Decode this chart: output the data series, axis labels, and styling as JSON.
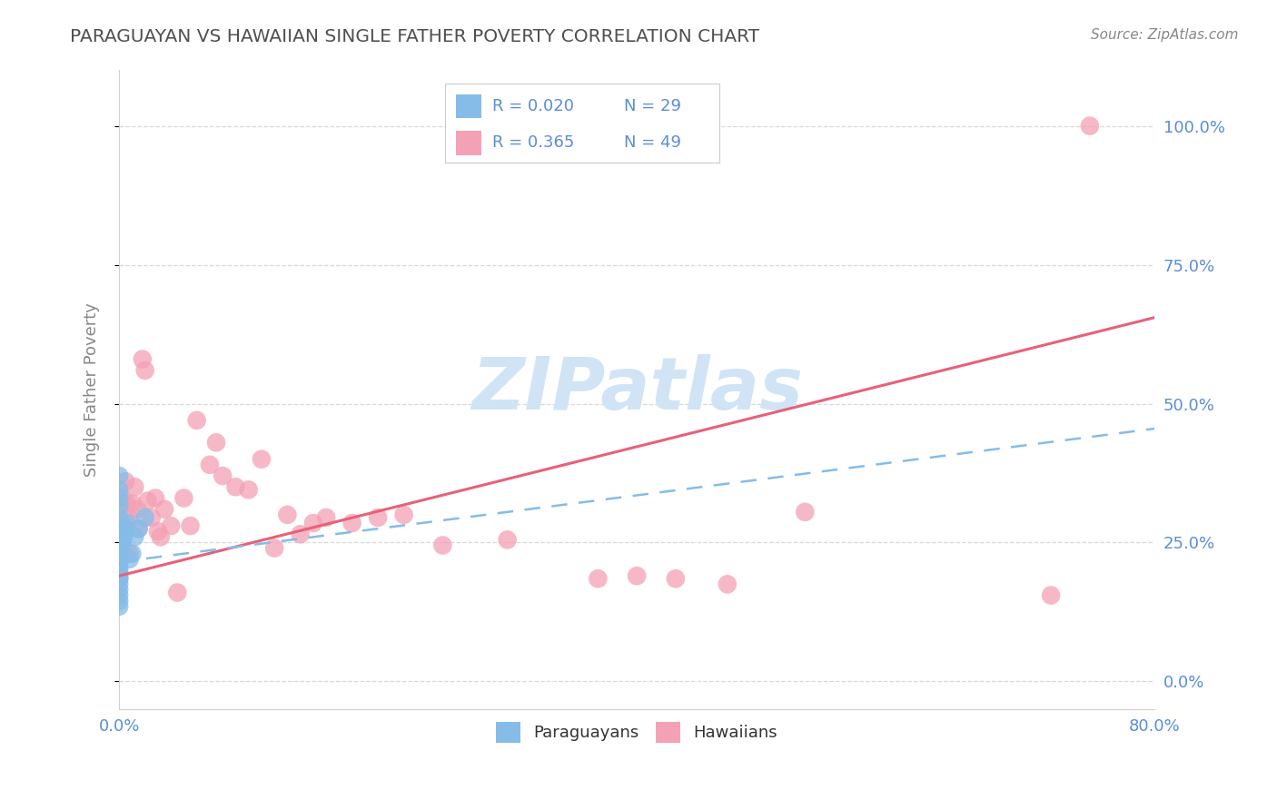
{
  "title": "PARAGUAYAN VS HAWAIIAN SINGLE FATHER POVERTY CORRELATION CHART",
  "source": "Source: ZipAtlas.com",
  "ylabel": "Single Father Poverty",
  "xlim": [
    0.0,
    0.8
  ],
  "ylim": [
    -0.05,
    1.1
  ],
  "yticks": [
    0.0,
    0.25,
    0.5,
    0.75,
    1.0
  ],
  "ytick_labels": [
    "0.0%",
    "25.0%",
    "50.0%",
    "75.0%",
    "100.0%"
  ],
  "xtick_labels": [
    "0.0%",
    "80.0%"
  ],
  "watermark": "ZIPatlas",
  "legend_blue_r": "R = 0.020",
  "legend_blue_n": "N = 29",
  "legend_pink_r": "R = 0.365",
  "legend_pink_n": "N = 49",
  "blue_color": "#85bce8",
  "pink_color": "#f4a0b5",
  "blue_line_color": "#85bce8",
  "pink_line_color": "#e8607a",
  "grid_color": "#d0d0d0",
  "title_color": "#505050",
  "ylabel_color": "#888888",
  "tick_color_right": "#5b8dd9",
  "background_color": "#ffffff",
  "watermark_color": "#d0e4f5",
  "legend_r_color": "#5b8dd9",
  "bottom_label_color": "#333333",
  "para_x": [
    0.0,
    0.0,
    0.0,
    0.0,
    0.0,
    0.0,
    0.0,
    0.0,
    0.0,
    0.0,
    0.0,
    0.0,
    0.0,
    0.0,
    0.0,
    0.0,
    0.0,
    0.0,
    0.0,
    0.002,
    0.003,
    0.004,
    0.005,
    0.006,
    0.008,
    0.01,
    0.012,
    0.015,
    0.02
  ],
  "para_y": [
    0.37,
    0.345,
    0.33,
    0.315,
    0.295,
    0.275,
    0.255,
    0.24,
    0.225,
    0.215,
    0.205,
    0.195,
    0.19,
    0.185,
    0.175,
    0.165,
    0.155,
    0.145,
    0.135,
    0.245,
    0.255,
    0.265,
    0.275,
    0.285,
    0.22,
    0.23,
    0.26,
    0.275,
    0.295
  ],
  "haw_x": [
    0.0,
    0.0,
    0.0,
    0.002,
    0.003,
    0.005,
    0.006,
    0.007,
    0.008,
    0.01,
    0.012,
    0.014,
    0.015,
    0.018,
    0.02,
    0.022,
    0.025,
    0.028,
    0.03,
    0.032,
    0.035,
    0.04,
    0.045,
    0.05,
    0.055,
    0.06,
    0.07,
    0.075,
    0.08,
    0.09,
    0.1,
    0.11,
    0.12,
    0.13,
    0.14,
    0.15,
    0.16,
    0.18,
    0.2,
    0.22,
    0.25,
    0.3,
    0.37,
    0.4,
    0.43,
    0.47,
    0.53,
    0.72,
    0.75
  ],
  "haw_y": [
    0.215,
    0.2,
    0.185,
    0.33,
    0.28,
    0.36,
    0.32,
    0.295,
    0.23,
    0.32,
    0.35,
    0.31,
    0.275,
    0.58,
    0.56,
    0.325,
    0.295,
    0.33,
    0.27,
    0.26,
    0.31,
    0.28,
    0.16,
    0.33,
    0.28,
    0.47,
    0.39,
    0.43,
    0.37,
    0.35,
    0.345,
    0.4,
    0.24,
    0.3,
    0.265,
    0.285,
    0.295,
    0.285,
    0.295,
    0.3,
    0.245,
    0.255,
    0.185,
    0.19,
    0.185,
    0.175,
    0.305,
    0.155,
    1.0
  ],
  "pink_line_x0": 0.0,
  "pink_line_y0": 0.19,
  "pink_line_x1": 0.8,
  "pink_line_y1": 0.655,
  "blue_line_x0": 0.0,
  "blue_line_y0": 0.215,
  "blue_line_x1": 0.8,
  "blue_line_y1": 0.455
}
